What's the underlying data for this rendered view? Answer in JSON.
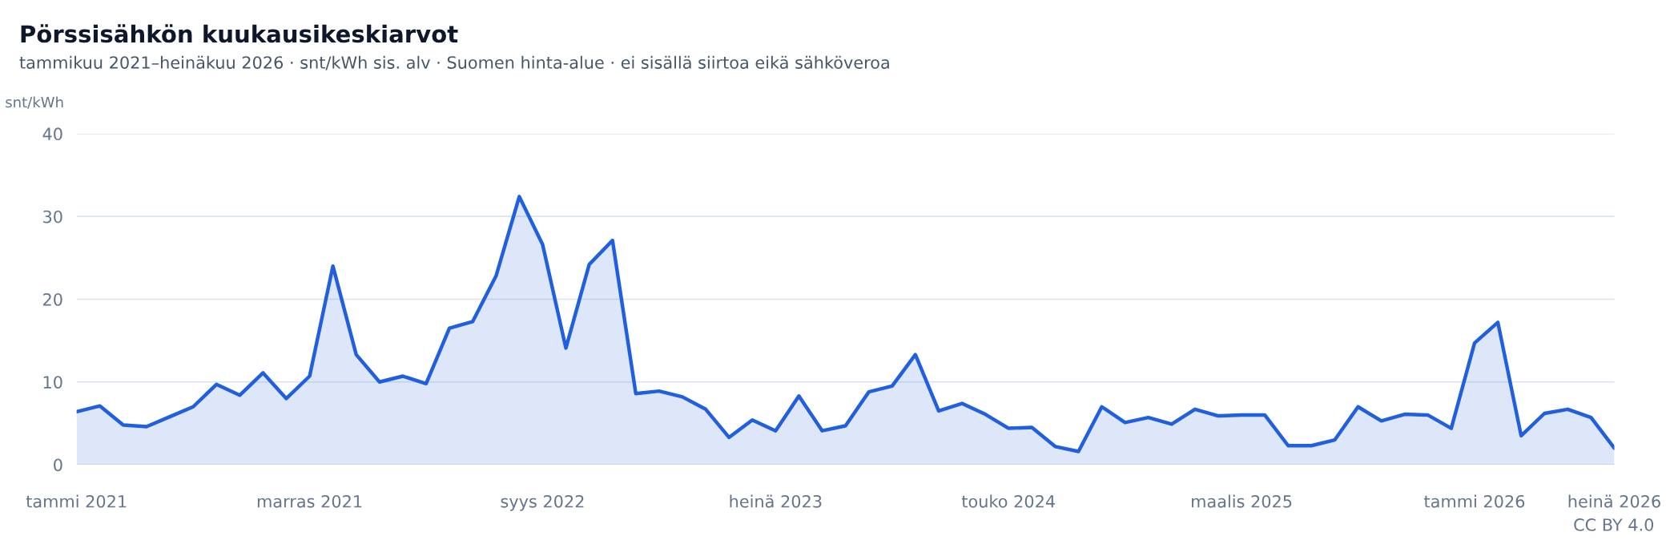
{
  "chart_data": {
    "type": "area",
    "title": "Pörssisähkön kuukausikeskiarvot",
    "subtitle": "tammikuu 2021–heinäkuu 2026 · snt/kWh sis. alv · Suomen hinta-alue · ei sisällä siirtoa eikä sähköveroa",
    "ylabel": "snt/kWh",
    "annotations": [
      "CC BY 4.0"
    ],
    "categories": [
      "tammi 2021",
      null,
      null,
      null,
      null,
      null,
      null,
      null,
      null,
      null,
      "marras 2021",
      null,
      null,
      null,
      null,
      null,
      null,
      null,
      null,
      null,
      "syys 2022",
      null,
      null,
      null,
      null,
      null,
      null,
      null,
      null,
      null,
      "heinä 2023",
      null,
      null,
      null,
      null,
      null,
      null,
      null,
      null,
      null,
      "touko 2024",
      null,
      null,
      null,
      null,
      null,
      null,
      null,
      null,
      null,
      "maalis 2025",
      null,
      null,
      null,
      null,
      null,
      null,
      null,
      null,
      null,
      "tammi 2026",
      null,
      null,
      null,
      null,
      null,
      "heinä 2026"
    ],
    "series": [
      {
        "color": "#1f5fe0",
        "values": [
          6.4,
          7.1,
          4.8,
          4.6,
          5.8,
          7.0,
          9.7,
          8.4,
          11.1,
          8.0,
          10.7,
          24.0,
          13.3,
          10.0,
          10.7,
          9.8,
          16.5,
          17.3,
          22.8,
          32.4,
          26.6,
          14.1,
          24.2,
          27.1,
          8.6,
          8.9,
          8.2,
          6.7,
          3.3,
          5.4,
          4.1,
          8.3,
          4.1,
          4.7,
          8.8,
          9.5,
          13.3,
          6.5,
          7.4,
          6.1,
          4.4,
          4.5,
          2.2,
          1.6,
          7.0,
          5.1,
          5.7,
          4.9,
          6.7,
          5.9,
          6.0,
          6.0,
          2.3,
          2.3,
          3.0,
          7.0,
          5.3,
          6.1,
          6.0,
          4.4,
          14.7,
          17.2,
          3.5,
          6.2,
          6.7,
          5.7,
          2.0
        ]
      }
    ],
    "ylim": [
      0,
      40
    ],
    "yticks": [
      0,
      10,
      20,
      30,
      40
    ],
    "grid": "y",
    "legend": false,
    "marker": "none",
    "line_style": "solid"
  }
}
